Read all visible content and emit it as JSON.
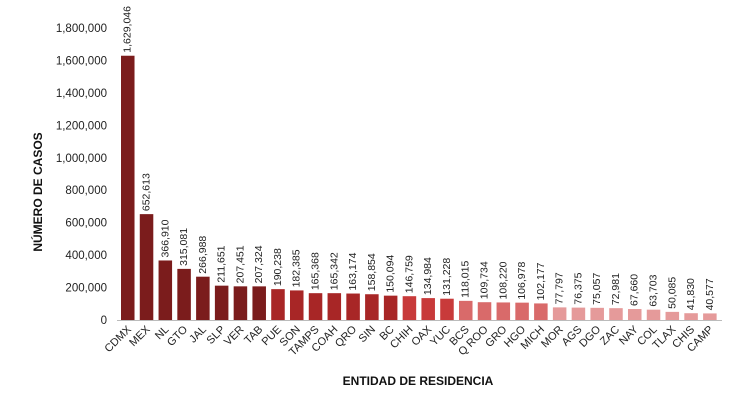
{
  "chart_data": {
    "type": "bar",
    "title": "",
    "xlabel": "ENTIDAD DE RESIDENCIA",
    "ylabel": "NÚMERO DE CASOS",
    "ylim": [
      0,
      1800000
    ],
    "yticks": [
      0,
      200000,
      400000,
      600000,
      800000,
      1000000,
      1200000,
      1400000,
      1600000,
      1800000
    ],
    "ytick_labels": [
      "0",
      "200,000",
      "400,000",
      "600,000",
      "800,000",
      "1,000,000",
      "1,200,000",
      "1,400,000",
      "1,600,000",
      "1,800,000"
    ],
    "grid": false,
    "categories": [
      "CDMX",
      "MEX",
      "NL",
      "GTO",
      "JAL",
      "SLP",
      "VER",
      "TAB",
      "PUE",
      "SON",
      "TAMPS",
      "COAH",
      "QRO",
      "SIN",
      "BC",
      "CHIH",
      "OAX",
      "YUC",
      "BCS",
      "Q ROO",
      "GRO",
      "HGO",
      "MICH",
      "MOR",
      "AGS",
      "DGO",
      "ZAC",
      "NAY",
      "COL",
      "TLAX",
      "CHIS",
      "CAMP"
    ],
    "values": [
      1629046,
      652613,
      366910,
      315081,
      266988,
      211651,
      207451,
      207324,
      190238,
      182385,
      165368,
      165342,
      163174,
      158854,
      150094,
      146759,
      134984,
      131228,
      118015,
      109734,
      108220,
      106978,
      102177,
      77797,
      76375,
      75057,
      72981,
      67660,
      63703,
      50085,
      41830,
      40577
    ],
    "data_labels": [
      "1,629,046",
      "652,613",
      "366,910",
      "315,081",
      "266,988",
      "211,651",
      "207,451",
      "207,324",
      "190,238",
      "182,385",
      "165,368",
      "165,342",
      "163,174",
      "158,854",
      "150,094",
      "146,759",
      "134,984",
      "131,228",
      "118,015",
      "109,734",
      "108,220",
      "106,978",
      "102,177",
      "77,797",
      "76,375",
      "75,057",
      "72,981",
      "67,660",
      "63,703",
      "50,085",
      "41,830",
      "40,577"
    ],
    "colors": [
      "#7b1c1c",
      "#7b1c1c",
      "#7b1c1c",
      "#7b1c1c",
      "#7b1c1c",
      "#7b1c1c",
      "#7b1c1c",
      "#7b1c1c",
      "#a82626",
      "#a82626",
      "#a82626",
      "#a82626",
      "#a82626",
      "#a82626",
      "#a82626",
      "#c83a3a",
      "#c83a3a",
      "#c83a3a",
      "#d96a6a",
      "#d96a6a",
      "#d96a6a",
      "#d96a6a",
      "#d96a6a",
      "#e59a9a",
      "#e59a9a",
      "#e59a9a",
      "#e59a9a",
      "#e59a9a",
      "#e59a9a",
      "#e59a9a",
      "#e59a9a",
      "#e59a9a"
    ]
  }
}
